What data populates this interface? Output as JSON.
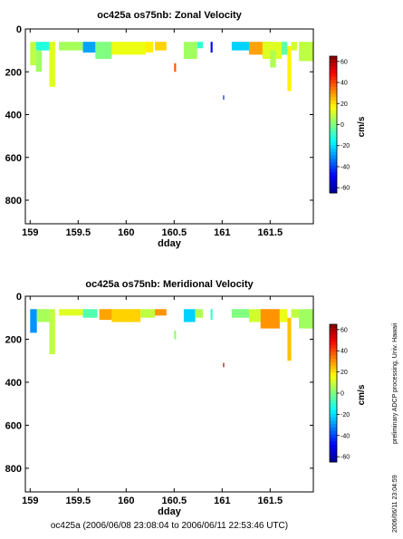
{
  "footer": "oc425a (2006/06/08 23:08:04 to 2006/06/11 22:53:46 UTC)",
  "side_note": "preliminary ADCP processing,   Univ. Hawaii",
  "side_timestamp": "2006/06/11 23:04:59",
  "colorbar": {
    "unit": "cm/s",
    "ticks": [
      "60",
      "40",
      "20",
      "0",
      "-20",
      "-40",
      "-60"
    ],
    "tick_values": [
      60,
      40,
      20,
      0,
      -20,
      -40,
      -60
    ],
    "range": [
      -65,
      65
    ],
    "colormap": [
      "#00008f",
      "#0000ff",
      "#0080ff",
      "#00ffff",
      "#80ff80",
      "#ffff00",
      "#ff8000",
      "#ff0000",
      "#800000"
    ]
  },
  "chart_data": [
    {
      "type": "heatmap",
      "title": "oc425a os75nb: Zonal Velocity",
      "xlabel": "dday",
      "ylabel": "",
      "xlim": [
        158.95,
        161.95
      ],
      "ylim": [
        910,
        0
      ],
      "xticks": [
        159,
        159.5,
        160,
        160.5,
        161,
        161.5
      ],
      "xtick_labels": [
        "159",
        "159.5",
        "160",
        "160.5",
        "161",
        "161.5"
      ],
      "yticks": [
        0,
        200,
        400,
        600,
        800
      ],
      "ytick_labels": [
        "0",
        "200",
        "400",
        "600",
        "800"
      ],
      "cells": [
        {
          "x": [
            159.0,
            159.06
          ],
          "depth": [
            60,
            170
          ],
          "value": 8
        },
        {
          "x": [
            159.06,
            159.2
          ],
          "depth": [
            60,
            100
          ],
          "value": -12
        },
        {
          "x": [
            159.06,
            159.12
          ],
          "depth": [
            100,
            200
          ],
          "value": 4
        },
        {
          "x": [
            159.2,
            159.26
          ],
          "depth": [
            60,
            270
          ],
          "value": 12
        },
        {
          "x": [
            159.3,
            159.55
          ],
          "depth": [
            60,
            100
          ],
          "value": 5
        },
        {
          "x": [
            159.55,
            159.68
          ],
          "depth": [
            60,
            110
          ],
          "value": -28
        },
        {
          "x": [
            159.68,
            159.85
          ],
          "depth": [
            60,
            140
          ],
          "value": 0
        },
        {
          "x": [
            159.85,
            160.2
          ],
          "depth": [
            60,
            120
          ],
          "value": 14
        },
        {
          "x": [
            160.2,
            160.28
          ],
          "depth": [
            60,
            110
          ],
          "value": 18
        },
        {
          "x": [
            160.3,
            160.42
          ],
          "depth": [
            60,
            100
          ],
          "value": 22
        },
        {
          "x": [
            160.5,
            160.52
          ],
          "depth": [
            160,
            200
          ],
          "value": 38
        },
        {
          "x": [
            160.6,
            160.74
          ],
          "depth": [
            60,
            140
          ],
          "value": 4
        },
        {
          "x": [
            160.74,
            160.8
          ],
          "depth": [
            60,
            90
          ],
          "value": -10
        },
        {
          "x": [
            160.88,
            160.9
          ],
          "depth": [
            60,
            110
          ],
          "value": -50
        },
        {
          "x": [
            161.01,
            161.02
          ],
          "depth": [
            310,
            330
          ],
          "value": -45
        },
        {
          "x": [
            161.1,
            161.28
          ],
          "depth": [
            60,
            100
          ],
          "value": -22
        },
        {
          "x": [
            161.28,
            161.5
          ],
          "depth": [
            60,
            120
          ],
          "value": 28
        },
        {
          "x": [
            161.42,
            161.62
          ],
          "depth": [
            60,
            140
          ],
          "value": 12
        },
        {
          "x": [
            161.5,
            161.56
          ],
          "depth": [
            100,
            180
          ],
          "value": 6
        },
        {
          "x": [
            161.62,
            161.68
          ],
          "depth": [
            60,
            120
          ],
          "value": -4
        },
        {
          "x": [
            161.68,
            161.72
          ],
          "depth": [
            80,
            290
          ],
          "value": 18
        },
        {
          "x": [
            161.72,
            161.78
          ],
          "depth": [
            60,
            100
          ],
          "value": 10
        },
        {
          "x": [
            161.8,
            161.95
          ],
          "depth": [
            60,
            150
          ],
          "value": 8
        }
      ]
    },
    {
      "type": "heatmap",
      "title": "oc425a os75nb: Meridional Velocity",
      "xlabel": "dday",
      "ylabel": "",
      "xlim": [
        158.95,
        161.95
      ],
      "ylim": [
        910,
        0
      ],
      "xticks": [
        159,
        159.5,
        160,
        160.5,
        161,
        161.5
      ],
      "xtick_labels": [
        "159",
        "159.5",
        "160",
        "160.5",
        "161",
        "161.5"
      ],
      "yticks": [
        0,
        200,
        400,
        600,
        800
      ],
      "ytick_labels": [
        "0",
        "200",
        "400",
        "600",
        "800"
      ],
      "cells": [
        {
          "x": [
            159.0,
            159.07
          ],
          "depth": [
            60,
            170
          ],
          "value": -30
        },
        {
          "x": [
            159.07,
            159.2
          ],
          "depth": [
            60,
            120
          ],
          "value": 5
        },
        {
          "x": [
            159.2,
            159.26
          ],
          "depth": [
            60,
            270
          ],
          "value": 8
        },
        {
          "x": [
            159.3,
            159.55
          ],
          "depth": [
            60,
            90
          ],
          "value": 12
        },
        {
          "x": [
            159.55,
            159.7
          ],
          "depth": [
            60,
            100
          ],
          "value": -6
        },
        {
          "x": [
            159.72,
            159.85
          ],
          "depth": [
            60,
            110
          ],
          "value": 28
        },
        {
          "x": [
            159.85,
            160.15
          ],
          "depth": [
            60,
            120
          ],
          "value": 22
        },
        {
          "x": [
            160.15,
            160.3
          ],
          "depth": [
            60,
            100
          ],
          "value": 8
        },
        {
          "x": [
            160.3,
            160.42
          ],
          "depth": [
            60,
            90
          ],
          "value": 30
        },
        {
          "x": [
            160.5,
            160.52
          ],
          "depth": [
            160,
            200
          ],
          "value": 2
        },
        {
          "x": [
            160.6,
            160.72
          ],
          "depth": [
            60,
            120
          ],
          "value": -22
        },
        {
          "x": [
            160.72,
            160.8
          ],
          "depth": [
            60,
            100
          ],
          "value": 6
        },
        {
          "x": [
            160.88,
            160.9
          ],
          "depth": [
            60,
            110
          ],
          "value": -10
        },
        {
          "x": [
            161.01,
            161.02
          ],
          "depth": [
            310,
            330
          ],
          "value": 60
        },
        {
          "x": [
            161.1,
            161.28
          ],
          "depth": [
            60,
            100
          ],
          "value": 0
        },
        {
          "x": [
            161.28,
            161.4
          ],
          "depth": [
            60,
            120
          ],
          "value": 10
        },
        {
          "x": [
            161.4,
            161.6
          ],
          "depth": [
            60,
            150
          ],
          "value": 30
        },
        {
          "x": [
            161.6,
            161.68
          ],
          "depth": [
            60,
            120
          ],
          "value": 14
        },
        {
          "x": [
            161.68,
            161.72
          ],
          "depth": [
            100,
            300
          ],
          "value": 24
        },
        {
          "x": [
            161.72,
            161.8
          ],
          "depth": [
            60,
            100
          ],
          "value": 8
        },
        {
          "x": [
            161.8,
            161.95
          ],
          "depth": [
            60,
            150
          ],
          "value": 4
        }
      ]
    }
  ]
}
